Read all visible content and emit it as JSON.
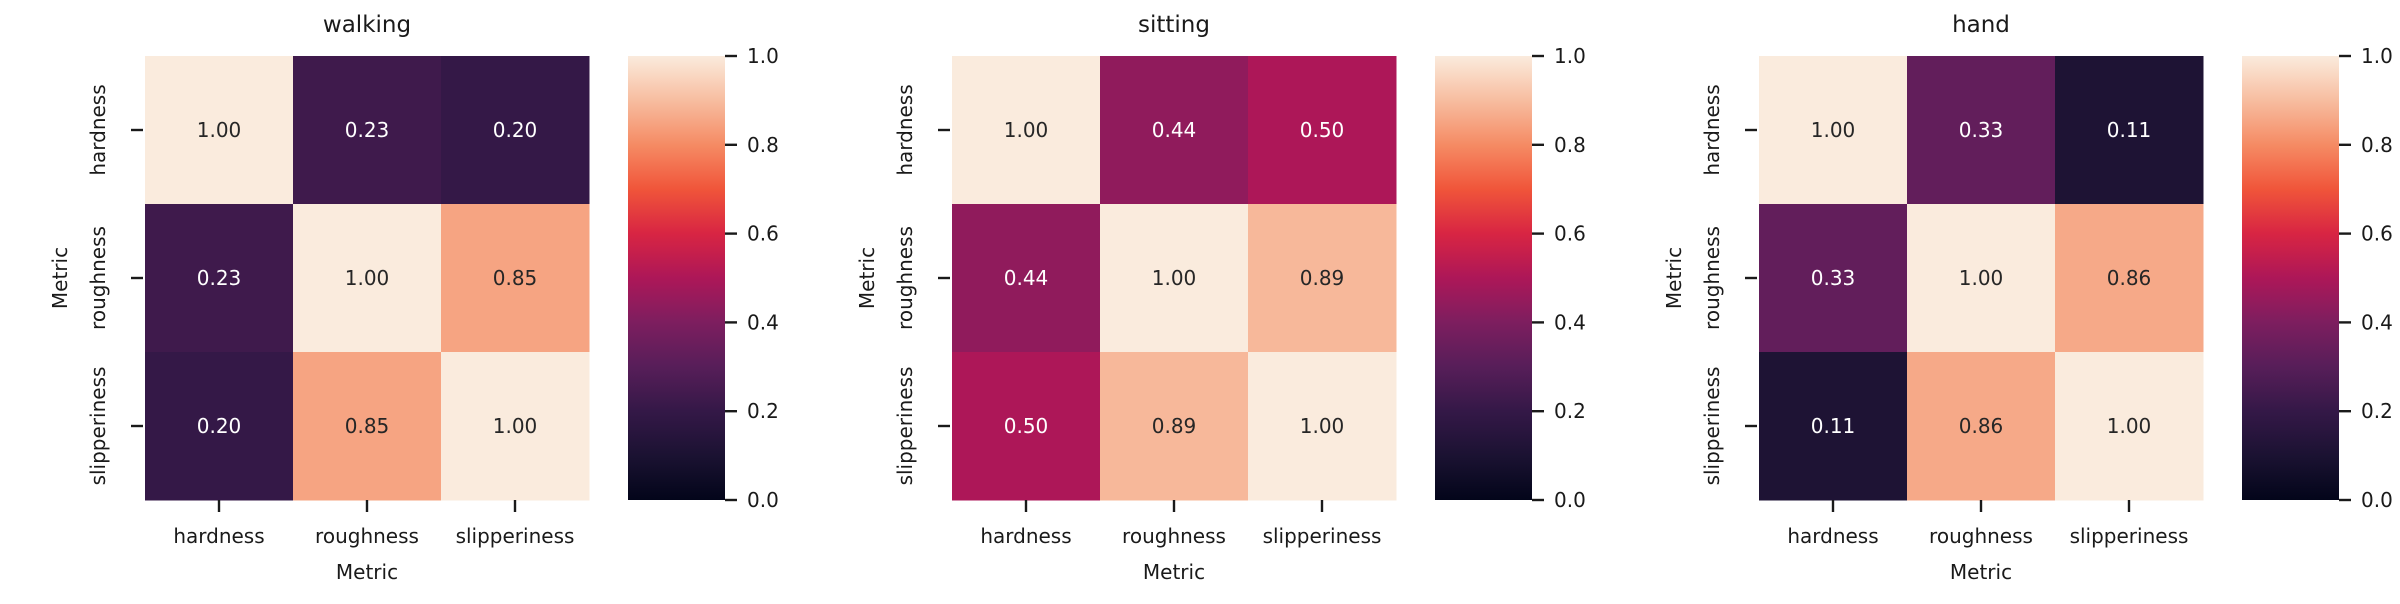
{
  "chart_data": [
    {
      "type": "heatmap",
      "title": "walking",
      "xlabel": "Metric",
      "ylabel": "Metric",
      "x_categories": [
        "hardness",
        "roughness",
        "slipperiness"
      ],
      "y_categories": [
        "hardness",
        "roughness",
        "slipperiness"
      ],
      "values": [
        [
          1.0,
          0.23,
          0.2
        ],
        [
          0.23,
          1.0,
          0.85
        ],
        [
          0.2,
          0.85,
          1.0
        ]
      ],
      "value_labels": [
        [
          "1.00",
          "0.23",
          "0.20"
        ],
        [
          "0.23",
          "1.00",
          "0.85"
        ],
        [
          "0.20",
          "0.85",
          "1.00"
        ]
      ],
      "colorbar": {
        "range": [
          0.0,
          1.0
        ],
        "ticks": [
          "0.0",
          "0.2",
          "0.4",
          "0.6",
          "0.8",
          "1.0"
        ]
      },
      "colormap": "rocket"
    },
    {
      "type": "heatmap",
      "title": "sitting",
      "xlabel": "Metric",
      "ylabel": "Metric",
      "x_categories": [
        "hardness",
        "roughness",
        "slipperiness"
      ],
      "y_categories": [
        "hardness",
        "roughness",
        "slipperiness"
      ],
      "values": [
        [
          1.0,
          0.44,
          0.5
        ],
        [
          0.44,
          1.0,
          0.89
        ],
        [
          0.5,
          0.89,
          1.0
        ]
      ],
      "value_labels": [
        [
          "1.00",
          "0.44",
          "0.50"
        ],
        [
          "0.44",
          "1.00",
          "0.89"
        ],
        [
          "0.50",
          "0.89",
          "1.00"
        ]
      ],
      "colorbar": {
        "range": [
          0.0,
          1.0
        ],
        "ticks": [
          "0.0",
          "0.2",
          "0.4",
          "0.6",
          "0.8",
          "1.0"
        ]
      },
      "colormap": "rocket"
    },
    {
      "type": "heatmap",
      "title": "hand",
      "xlabel": "Metric",
      "ylabel": "Metric",
      "x_categories": [
        "hardness",
        "roughness",
        "slipperiness"
      ],
      "y_categories": [
        "hardness",
        "roughness",
        "slipperiness"
      ],
      "values": [
        [
          1.0,
          0.33,
          0.11
        ],
        [
          0.33,
          1.0,
          0.86
        ],
        [
          0.11,
          0.86,
          1.0
        ]
      ],
      "value_labels": [
        [
          "1.00",
          "0.33",
          "0.11"
        ],
        [
          "0.33",
          "1.00",
          "0.86"
        ],
        [
          "0.11",
          "0.86",
          "1.00"
        ]
      ],
      "colorbar": {
        "range": [
          0.0,
          1.0
        ],
        "ticks": [
          "0.0",
          "0.2",
          "0.4",
          "0.6",
          "0.8",
          "1.0"
        ]
      },
      "colormap": "rocket"
    }
  ]
}
